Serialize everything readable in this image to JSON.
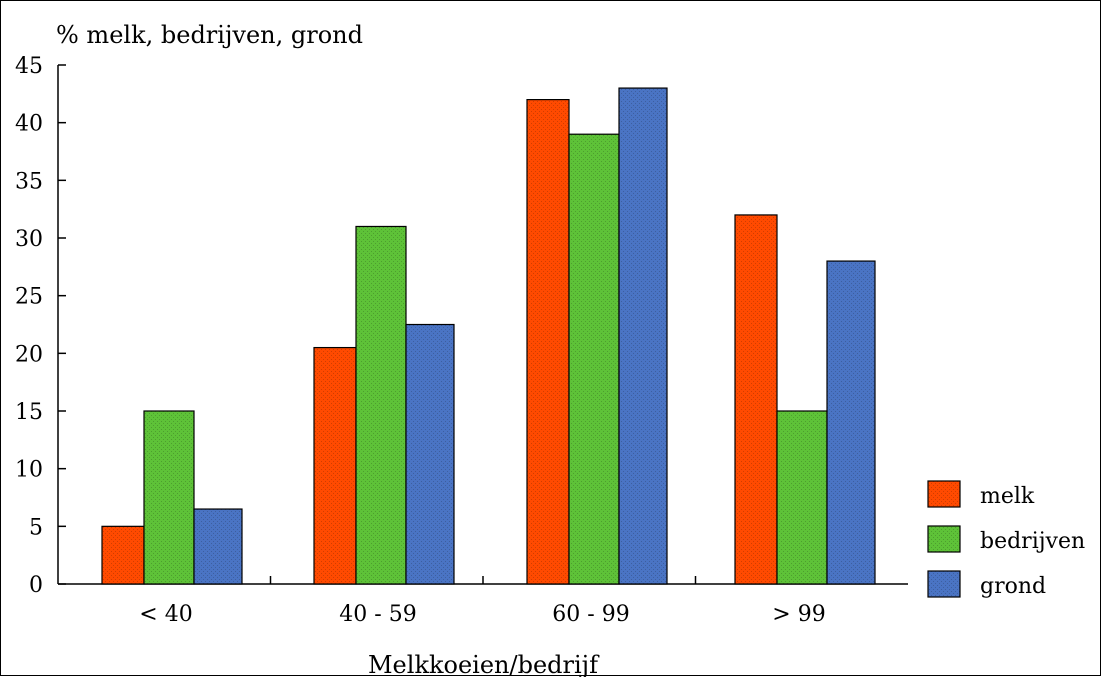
{
  "chart_data": {
    "type": "bar",
    "title": "% melk, bedrijven, grond",
    "xlabel": "Melkkoeien/bedrijf",
    "ylabel": "",
    "ylim": [
      0,
      45
    ],
    "yticks": [
      0,
      5,
      10,
      15,
      20,
      25,
      30,
      35,
      40,
      45
    ],
    "categories": [
      "< 40",
      "40 - 59",
      "60 - 99",
      "> 99"
    ],
    "series": [
      {
        "name": "melk",
        "color": "#ff4a00",
        "values": [
          5,
          20.5,
          42,
          32
        ]
      },
      {
        "name": "bedrijven",
        "color": "#5ec238",
        "values": [
          15,
          31,
          39,
          15
        ]
      },
      {
        "name": "grond",
        "color": "#4a74c4",
        "values": [
          6.5,
          22.5,
          43,
          28
        ]
      }
    ],
    "legend_position": "right",
    "grid": false
  }
}
